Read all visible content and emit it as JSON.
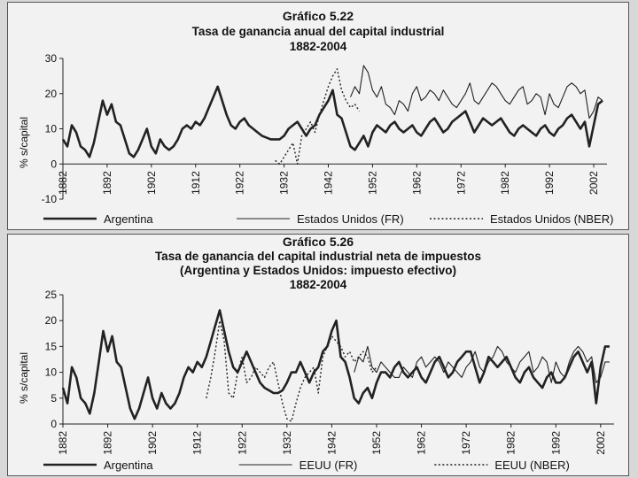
{
  "chart_data": [
    {
      "type": "line",
      "title": "Gráfico 5.22",
      "subtitle": [
        "Tasa de ganancia anual del capital industrial",
        "1882-2004"
      ],
      "ylabel": "% s/capital",
      "xlabel": "",
      "ylim": [
        -10,
        30
      ],
      "yticks": [
        -10,
        0,
        10,
        20,
        30
      ],
      "xlim": [
        1882,
        2005
      ],
      "xticks": [
        1882,
        1892,
        1902,
        1912,
        1922,
        1932,
        1942,
        1952,
        1962,
        1972,
        1982,
        1992,
        2002
      ],
      "grid": false,
      "legend": "bottom",
      "series": [
        {
          "name": "Argentina",
          "style": "thick",
          "x": [
            1882,
            1883,
            1884,
            1885,
            1886,
            1887,
            1888,
            1889,
            1890,
            1891,
            1892,
            1893,
            1894,
            1895,
            1896,
            1897,
            1898,
            1899,
            1900,
            1901,
            1902,
            1903,
            1904,
            1905,
            1906,
            1907,
            1908,
            1909,
            1910,
            1911,
            1912,
            1913,
            1914,
            1915,
            1916,
            1917,
            1918,
            1919,
            1920,
            1921,
            1922,
            1923,
            1924,
            1925,
            1926,
            1927,
            1928,
            1929,
            1930,
            1931,
            1932,
            1933,
            1934,
            1935,
            1936,
            1937,
            1938,
            1939,
            1940,
            1941,
            1942,
            1943,
            1944,
            1945,
            1946,
            1947,
            1948,
            1949,
            1950,
            1951,
            1952,
            1953,
            1954,
            1955,
            1956,
            1957,
            1958,
            1959,
            1960,
            1961,
            1962,
            1963,
            1964,
            1965,
            1966,
            1967,
            1968,
            1969,
            1970,
            1971,
            1972,
            1973,
            1974,
            1975,
            1976,
            1977,
            1978,
            1979,
            1980,
            1981,
            1982,
            1983,
            1984,
            1985,
            1986,
            1987,
            1988,
            1989,
            1990,
            1991,
            1992,
            1993,
            1994,
            1995,
            1996,
            1997,
            1998,
            1999,
            2000,
            2001,
            2002,
            2003,
            2004
          ],
          "y": [
            7,
            5,
            11,
            9,
            5,
            4,
            2,
            6,
            12,
            18,
            14,
            17,
            12,
            11,
            7,
            3,
            2,
            4,
            7,
            10,
            5,
            3,
            7,
            5,
            4,
            5,
            7,
            10,
            11,
            10,
            12,
            11,
            13,
            16,
            19,
            22,
            18,
            14,
            11,
            10,
            12,
            13,
            11,
            10,
            9,
            8,
            7.5,
            7,
            7,
            7,
            8,
            10,
            11,
            12,
            10,
            8,
            10,
            11,
            14,
            16,
            18,
            21,
            14,
            13,
            9,
            5,
            4,
            6,
            8,
            5,
            9,
            11,
            10,
            9,
            11,
            12,
            10,
            9,
            10,
            11,
            9,
            8,
            10,
            12,
            13,
            11,
            9,
            10,
            12,
            13,
            14,
            15,
            12,
            9,
            11,
            13,
            12,
            11,
            12,
            13,
            11,
            9,
            8,
            10,
            11,
            10,
            9,
            8,
            10,
            11,
            9,
            8,
            10,
            11,
            13,
            14,
            12,
            10,
            12,
            5,
            11,
            17,
            18
          ]
        },
        {
          "name": "Estados Unidos (FR)",
          "style": "thin",
          "x": [
            1947,
            1948,
            1949,
            1950,
            1951,
            1952,
            1953,
            1954,
            1955,
            1956,
            1957,
            1958,
            1959,
            1960,
            1961,
            1962,
            1963,
            1964,
            1965,
            1966,
            1967,
            1968,
            1969,
            1970,
            1971,
            1972,
            1973,
            1974,
            1975,
            1976,
            1977,
            1978,
            1979,
            1980,
            1981,
            1982,
            1983,
            1984,
            1985,
            1986,
            1987,
            1988,
            1989,
            1990,
            1991,
            1992,
            1993,
            1994,
            1995,
            1996,
            1997,
            1998,
            1999,
            2000,
            2001,
            2002,
            2003,
            2004
          ],
          "y": [
            19,
            22,
            20,
            28,
            26,
            21,
            19,
            22,
            17,
            16,
            14,
            18,
            17,
            15,
            20,
            22,
            18,
            19,
            21,
            20,
            18,
            21,
            19,
            17,
            16,
            18,
            20,
            23,
            18,
            17,
            19,
            21,
            23,
            22,
            20,
            18,
            17,
            19,
            21,
            22,
            17,
            18,
            20,
            19,
            14,
            20,
            17,
            16,
            19,
            22,
            23,
            22,
            20,
            21,
            13,
            15,
            19,
            18
          ]
        },
        {
          "name": "Estados Unidos (NBER)",
          "style": "dotted",
          "x": [
            1930,
            1931,
            1932,
            1933,
            1934,
            1935,
            1936,
            1937,
            1938,
            1939,
            1940,
            1941,
            1942,
            1943,
            1944,
            1945,
            1946,
            1947,
            1948,
            1949
          ],
          "y": [
            1,
            0,
            2,
            4,
            6,
            0,
            8,
            10,
            12,
            9,
            14,
            18,
            22,
            25,
            27,
            21,
            18,
            16,
            17,
            15
          ]
        }
      ]
    },
    {
      "type": "line",
      "title": "Gráfico 5.26",
      "subtitle": [
        "Tasa de ganancia del capital industrial neta de impuestos",
        "(Argentina y Estados Unidos: impuesto efectivo)",
        "1882-2004"
      ],
      "ylabel": "% s/capital",
      "xlabel": "",
      "ylim": [
        0,
        25
      ],
      "yticks": [
        0,
        5,
        10,
        15,
        20,
        25
      ],
      "xlim": [
        1882,
        2005
      ],
      "xticks": [
        1882,
        1892,
        1902,
        1912,
        1922,
        1932,
        1942,
        1952,
        1962,
        1972,
        1982,
        1992,
        2002
      ],
      "grid": false,
      "legend": "bottom",
      "series": [
        {
          "name": "Argentina",
          "style": "thick",
          "x": [
            1882,
            1883,
            1884,
            1885,
            1886,
            1887,
            1888,
            1889,
            1890,
            1891,
            1892,
            1893,
            1894,
            1895,
            1896,
            1897,
            1898,
            1899,
            1900,
            1901,
            1902,
            1903,
            1904,
            1905,
            1906,
            1907,
            1908,
            1909,
            1910,
            1911,
            1912,
            1913,
            1914,
            1915,
            1916,
            1917,
            1918,
            1919,
            1920,
            1921,
            1922,
            1923,
            1924,
            1925,
            1926,
            1927,
            1928,
            1929,
            1930,
            1931,
            1932,
            1933,
            1934,
            1935,
            1936,
            1937,
            1938,
            1939,
            1940,
            1941,
            1942,
            1943,
            1944,
            1945,
            1946,
            1947,
            1948,
            1949,
            1950,
            1951,
            1952,
            1953,
            1954,
            1955,
            1956,
            1957,
            1958,
            1959,
            1960,
            1961,
            1962,
            1963,
            1964,
            1965,
            1966,
            1967,
            1968,
            1969,
            1970,
            1971,
            1972,
            1973,
            1974,
            1975,
            1976,
            1977,
            1978,
            1979,
            1980,
            1981,
            1982,
            1983,
            1984,
            1985,
            1986,
            1987,
            1988,
            1989,
            1990,
            1991,
            1992,
            1993,
            1994,
            1995,
            1996,
            1997,
            1998,
            1999,
            2000,
            2001,
            2002,
            2003,
            2004
          ],
          "y": [
            7,
            4,
            11,
            9,
            5,
            4,
            2,
            6,
            12,
            18,
            14,
            17,
            12,
            11,
            7,
            3,
            1,
            3,
            6,
            9,
            5,
            3,
            6,
            4,
            3,
            4,
            6,
            9,
            11,
            10,
            12,
            11,
            13,
            16,
            19,
            22,
            18,
            14,
            11,
            10,
            12,
            14,
            12,
            10,
            8,
            7,
            6.5,
            6,
            6,
            6.5,
            8,
            10,
            10,
            12,
            10,
            8,
            10,
            11,
            14,
            15,
            18,
            20,
            13,
            12,
            9,
            5,
            4,
            6,
            7,
            5,
            8,
            10,
            10,
            9,
            11,
            12,
            10,
            9,
            10,
            11,
            9,
            8,
            10,
            12,
            13,
            11,
            9,
            10,
            12,
            13,
            14,
            14,
            11,
            8,
            10,
            13,
            12,
            11,
            12,
            13,
            11,
            9,
            8,
            10,
            11,
            9,
            8,
            7,
            9,
            10,
            8,
            8,
            9,
            11,
            13,
            14,
            12,
            10,
            12,
            4,
            11,
            15,
            15
          ]
        },
        {
          "name": "EEUU (FR)",
          "style": "thin",
          "x": [
            1947,
            1948,
            1949,
            1950,
            1951,
            1952,
            1953,
            1954,
            1955,
            1956,
            1957,
            1958,
            1959,
            1960,
            1961,
            1962,
            1963,
            1964,
            1965,
            1966,
            1967,
            1968,
            1969,
            1970,
            1971,
            1972,
            1973,
            1974,
            1975,
            1976,
            1977,
            1978,
            1979,
            1980,
            1981,
            1982,
            1983,
            1984,
            1985,
            1986,
            1987,
            1988,
            1989,
            1990,
            1991,
            1992,
            1993,
            1994,
            1995,
            1996,
            1997,
            1998,
            1999,
            2000,
            2001,
            2002,
            2003,
            2004
          ],
          "y": [
            10,
            13,
            12,
            15,
            11,
            10,
            12,
            11,
            10,
            9,
            9,
            11,
            10,
            9,
            12,
            13,
            11,
            12,
            13,
            12,
            10,
            12,
            11,
            10,
            9,
            11,
            12,
            14,
            11,
            10,
            12,
            13,
            15,
            14,
            12,
            11,
            10,
            12,
            13,
            14,
            10,
            11,
            13,
            12,
            8,
            12,
            10,
            9,
            12,
            14,
            15,
            14,
            12,
            13,
            8,
            9,
            12,
            12
          ]
        },
        {
          "name": "EEUU (NBER)",
          "style": "dotted",
          "x": [
            1914,
            1915,
            1916,
            1917,
            1918,
            1919,
            1920,
            1921,
            1922,
            1923,
            1924,
            1925,
            1926,
            1927,
            1928,
            1929,
            1930,
            1931,
            1932,
            1933,
            1934,
            1935,
            1936,
            1937,
            1938,
            1939,
            1940,
            1941,
            1942,
            1943,
            1944,
            1945,
            1946,
            1947,
            1948,
            1949,
            1950,
            1951,
            1952
          ],
          "y": [
            5,
            9,
            14,
            20,
            16,
            6,
            5,
            10,
            13,
            8,
            9,
            11,
            10,
            9,
            11,
            12,
            8,
            4,
            1,
            0.5,
            4,
            7,
            9,
            10,
            11,
            6,
            13,
            15,
            17,
            16,
            15,
            13,
            14,
            12,
            13,
            14,
            13,
            10,
            11
          ]
        }
      ]
    }
  ]
}
